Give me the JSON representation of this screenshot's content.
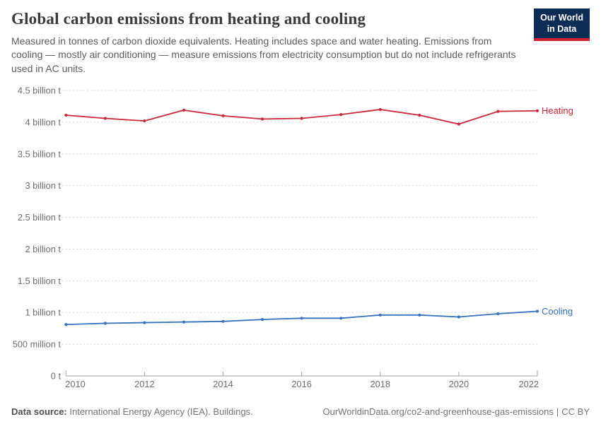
{
  "header": {
    "title": "Global carbon emissions from heating and cooling",
    "subtitle": "Measured in tonnes of carbon dioxide equivalents. Heating includes space and water heating. Emissions from cooling — mostly air conditioning — measure emissions from electricity consumption but do not include refrigerants used in AC units."
  },
  "logo": {
    "line1": "Our World",
    "line2": "in Data",
    "bg_color": "#0d2d55",
    "bar_color": "#cf2331"
  },
  "chart_data": {
    "type": "line",
    "title": "Global carbon emissions from heating and cooling",
    "xlabel": "",
    "ylabel": "tonnes of CO₂ equivalents",
    "x": [
      2010,
      2011,
      2012,
      2013,
      2014,
      2015,
      2016,
      2017,
      2018,
      2019,
      2020,
      2021,
      2022
    ],
    "x_axis_tick_years": [
      2010,
      2012,
      2014,
      2016,
      2018,
      2020,
      2022
    ],
    "ylim": [
      0,
      4.5
    ],
    "grid": "horizontal-dashed",
    "legend": "line-end-labels",
    "y_axis_ticks": [
      {
        "value": 0,
        "label": "0 t"
      },
      {
        "value": 0.5,
        "label": "500 million t"
      },
      {
        "value": 1,
        "label": "1 billion t"
      },
      {
        "value": 1.5,
        "label": "1.5 billion t"
      },
      {
        "value": 2,
        "label": "2 billion t"
      },
      {
        "value": 2.5,
        "label": "2.5 billion t"
      },
      {
        "value": 3,
        "label": "3 billion t"
      },
      {
        "value": 3.5,
        "label": "3.5 billion t"
      },
      {
        "value": 4,
        "label": "4 billion t"
      },
      {
        "value": 4.5,
        "label": "4.5 billion t"
      }
    ],
    "series": [
      {
        "name": "Heating",
        "color": "#cd2639",
        "values": [
          4.11,
          4.06,
          4.02,
          4.19,
          4.1,
          4.05,
          4.06,
          4.12,
          4.2,
          4.11,
          3.97,
          4.17,
          4.18
        ]
      },
      {
        "name": "Cooling",
        "color": "#3573bd",
        "values": [
          0.81,
          0.83,
          0.84,
          0.85,
          0.86,
          0.89,
          0.91,
          0.91,
          0.96,
          0.96,
          0.93,
          0.98,
          1.02
        ]
      }
    ]
  },
  "footer": {
    "source_label": "Data source:",
    "source": "International Energy Agency (IEA). Buildings.",
    "url": "OurWorldinData.org/co2-and-greenhouse-gas-emissions",
    "separator": "|",
    "license": "CC BY"
  }
}
